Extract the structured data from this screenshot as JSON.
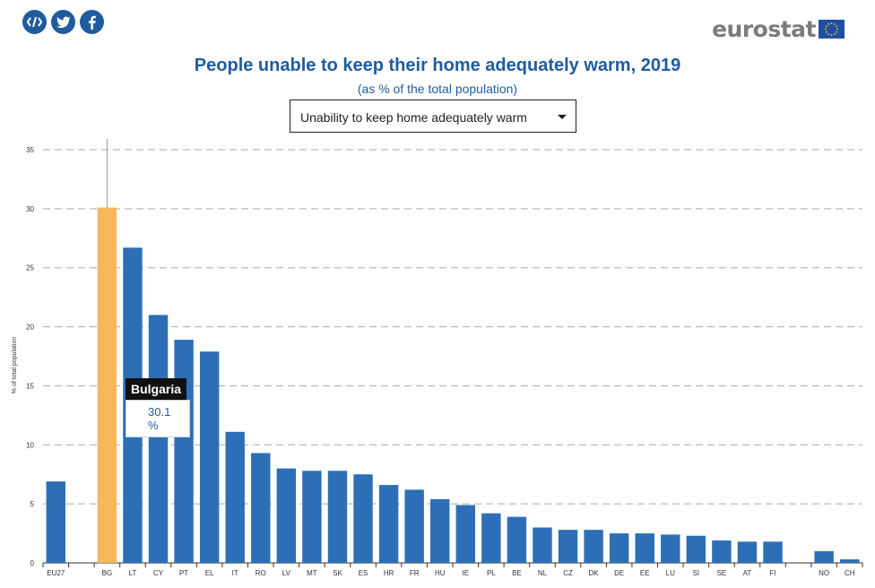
{
  "share": {
    "icons": [
      "embed-icon",
      "twitter-icon",
      "facebook-icon"
    ]
  },
  "logo": {
    "text": "eurostat"
  },
  "header": {
    "title": "People unable to keep their home adequately warm, 2019",
    "subtitle": "(as % of the total population)"
  },
  "selector": {
    "selected": "Unability to keep home adequately warm"
  },
  "tooltip": {
    "country": "Bulgaria",
    "value": "30.1 %"
  },
  "colors": {
    "bar": "#2d6fb7",
    "highlight": "#f7b85b",
    "title": "#1f5c9e",
    "grid": "#aaaaaa"
  },
  "chart_data": {
    "type": "bar",
    "title": "People unable to keep their home adequately warm, 2019",
    "subtitle": "(as % of the total population)",
    "ylabel": "% of total population",
    "ylim": [
      0,
      35
    ],
    "yticks": [
      0,
      5,
      10,
      15,
      20,
      25,
      30,
      35
    ],
    "grid": true,
    "highlighted": "BG",
    "categories": [
      "EU27",
      "",
      "BG",
      "LT",
      "CY",
      "PT",
      "EL",
      "IT",
      "RO",
      "LV",
      "MT",
      "SK",
      "ES",
      "HR",
      "FR",
      "HU",
      "IE",
      "PL",
      "BE",
      "NL",
      "CZ",
      "DK",
      "DE",
      "EE",
      "LU",
      "SI",
      "SE",
      "AT",
      "FI",
      "",
      "NO",
      "CH"
    ],
    "values": [
      6.9,
      null,
      30.1,
      26.7,
      21.0,
      18.9,
      17.9,
      11.1,
      9.3,
      8.0,
      7.8,
      7.8,
      7.5,
      6.6,
      6.2,
      5.4,
      4.9,
      4.2,
      3.9,
      3.0,
      2.8,
      2.8,
      2.5,
      2.5,
      2.4,
      2.3,
      1.9,
      1.8,
      1.8,
      null,
      1.0,
      0.3
    ]
  }
}
